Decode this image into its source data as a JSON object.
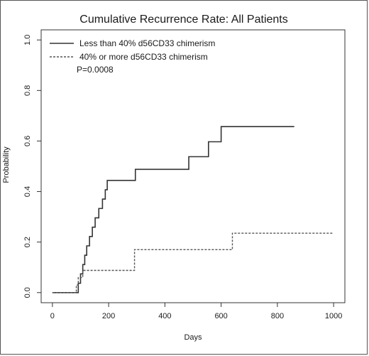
{
  "chart_data": {
    "type": "line",
    "chart_kind": "step",
    "title": "Cumulative Recurrence Rate: All Patients",
    "xlabel": "Days",
    "ylabel": "Probability",
    "xlim": [
      0,
      1000
    ],
    "ylim": [
      0,
      1.0
    ],
    "x_ticks": [
      "0",
      "200",
      "400",
      "600",
      "800",
      "1000"
    ],
    "y_ticks": [
      "0.0",
      "0.2",
      "0.4",
      "0.6",
      "0.8",
      "1.0"
    ],
    "x_tick_values": [
      0,
      200,
      400,
      600,
      800,
      1000
    ],
    "y_tick_values": [
      0,
      0.2,
      0.4,
      0.6,
      0.8,
      1.0
    ],
    "grid": false,
    "legend_position": "top-left",
    "annotation": "P=0.0008",
    "series": [
      {
        "name": "Less than 40% d56CD33 chimerism",
        "style": "solid",
        "color": "#333333",
        "x": [
          0,
          92,
          92,
          100,
          108,
          115,
          122,
          132,
          142,
          152,
          165,
          178,
          188,
          195,
          295,
          485,
          555,
          600,
          860
        ],
        "y": [
          0,
          0,
          0.037,
          0.074,
          0.111,
          0.148,
          0.185,
          0.222,
          0.259,
          0.296,
          0.333,
          0.37,
          0.407,
          0.444,
          0.488,
          0.538,
          0.597,
          0.657,
          0.657
        ]
      },
      {
        "name": "40% or more d56CD33 chimerism",
        "style": "dashed",
        "color": "#555555",
        "x": [
          0,
          80,
          85,
          92,
          108,
          285,
          292,
          640,
          1000
        ],
        "y": [
          0,
          0,
          0.03,
          0.06,
          0.088,
          0.088,
          0.17,
          0.235,
          0.235
        ]
      }
    ],
    "baseline": {
      "color": "#e53935",
      "x": [
        0,
        92
      ],
      "y": [
        0,
        0
      ]
    }
  }
}
